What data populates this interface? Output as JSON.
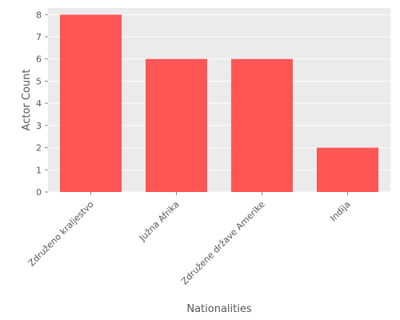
{
  "chart_data": {
    "type": "bar",
    "categories": [
      "Združeno kraljestvo",
      "Južna Afrika",
      "Združene države Amerike",
      "Indija"
    ],
    "values": [
      8,
      6,
      6,
      2
    ],
    "xlabel": "Nationalities",
    "ylabel": "Actor Count",
    "ylim": [
      0,
      8.3
    ],
    "yticks": [
      0,
      1,
      2,
      3,
      4,
      5,
      6,
      7,
      8
    ],
    "grid": true,
    "colors": {
      "bar": "#ff5555",
      "plot_background": "#ebebeb",
      "grid": "#ffffff",
      "text": "#555555"
    }
  }
}
